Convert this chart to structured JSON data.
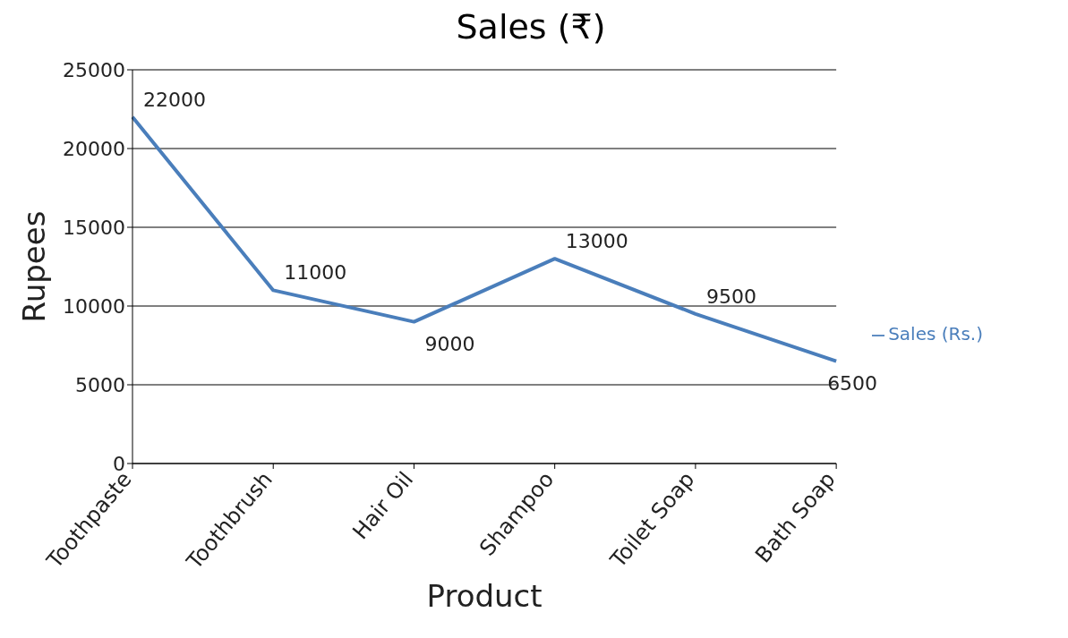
{
  "chart_data": {
    "type": "line",
    "title": "Sales (₹)",
    "xlabel": "Product",
    "ylabel": "Rupees",
    "categories": [
      "Toothpaste",
      "Toothbrush",
      "Hair Oil",
      "Shampoo",
      "Toilet Soap",
      "Bath Soap"
    ],
    "series": [
      {
        "name": "Sales (Rs.)",
        "color": "#4a7ebb",
        "values": [
          22000,
          11000,
          9000,
          13000,
          9500,
          6500
        ]
      }
    ],
    "ylim": [
      0,
      25000
    ],
    "yticks": [
      0,
      5000,
      10000,
      15000,
      20000,
      25000
    ],
    "grid": "y",
    "legend": "right",
    "data_labels": true
  }
}
